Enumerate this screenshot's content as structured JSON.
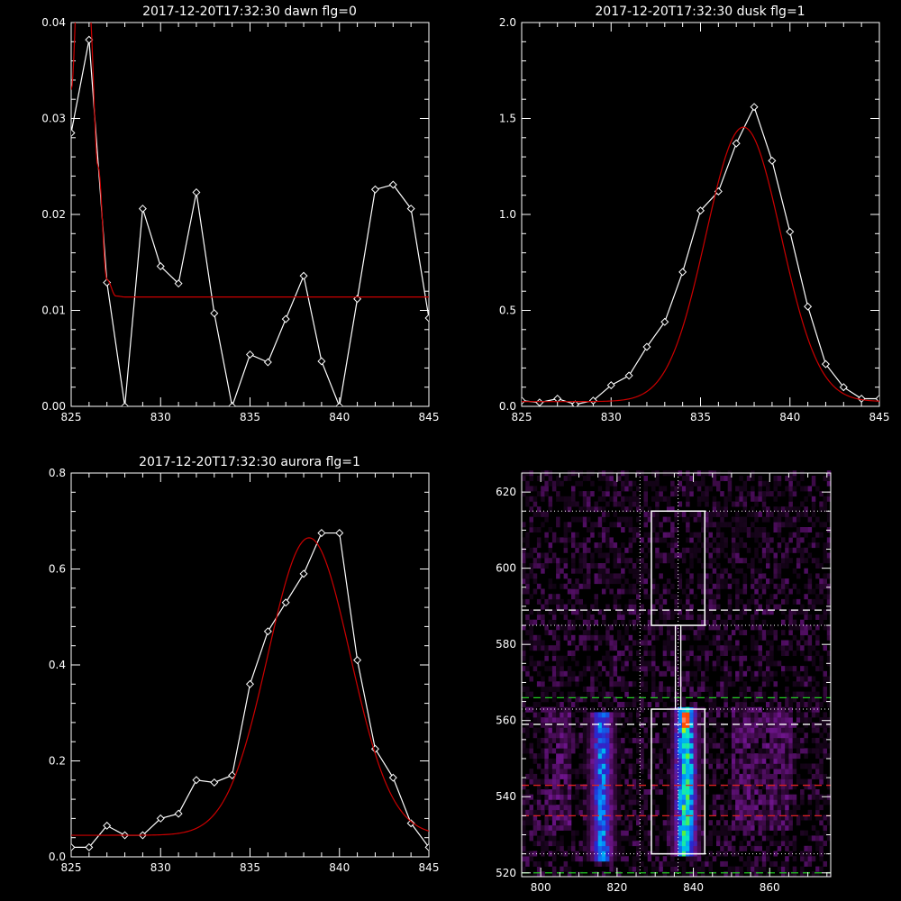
{
  "chart_data": [
    {
      "type": "line",
      "title": "2017-12-20T17:32:30 dawn flg=0",
      "xlim": [
        825,
        845
      ],
      "ylim": [
        0,
        0.04
      ],
      "xticks": [
        825,
        830,
        835,
        840,
        845
      ],
      "xtick_labels": [
        "825",
        "830",
        "835",
        "840",
        "845"
      ],
      "yticks": [
        0,
        0.01,
        0.02,
        0.03,
        0.04
      ],
      "ytick_labels": [
        "0.00",
        "0.01",
        "0.02",
        "0.03",
        "0.04"
      ],
      "series": [
        {
          "color": "#ffffff",
          "marker": "diamond",
          "x": [
            825,
            826,
            827,
            828,
            829,
            830,
            831,
            832,
            833,
            834,
            835,
            836,
            837,
            838,
            839,
            840,
            841,
            842,
            843,
            844,
            845
          ],
          "y": [
            0.0285,
            0.0382,
            0.0129,
            0.0,
            0.0206,
            0.0146,
            0.0128,
            0.0223,
            0.0097,
            0.0,
            0.0054,
            0.0046,
            0.0091,
            0.0136,
            0.0047,
            0.0,
            0.0112,
            0.0226,
            0.0231,
            0.0206,
            0.0092
          ]
        },
        {
          "color": "#cc0000",
          "x": [
            825,
            825.5,
            826,
            826.5,
            827,
            827.5,
            828,
            830,
            835,
            840,
            845
          ],
          "y": [
            0.033,
            0.05,
            0.042,
            0.025,
            0.0132,
            0.0115,
            0.0114,
            0.0114,
            0.0114,
            0.0114,
            0.0114
          ]
        }
      ]
    },
    {
      "type": "line",
      "title": "2017-12-20T17:32:30 dusk flg=1",
      "xlim": [
        825,
        845
      ],
      "ylim": [
        0,
        2.0
      ],
      "xticks": [
        825,
        830,
        835,
        840,
        845
      ],
      "xtick_labels": [
        "825",
        "830",
        "835",
        "840",
        "845"
      ],
      "yticks": [
        0,
        0.5,
        1.0,
        1.5,
        2.0
      ],
      "ytick_labels": [
        "0.0",
        "0.5",
        "1.0",
        "1.5",
        "2.0"
      ],
      "series": [
        {
          "color": "#ffffff",
          "marker": "diamond",
          "x": [
            825,
            826,
            827,
            828,
            829,
            830,
            831,
            832,
            833,
            834,
            835,
            836,
            837,
            838,
            839,
            840,
            841,
            842,
            843,
            844,
            845
          ],
          "y": [
            0.03,
            0.02,
            0.04,
            0.01,
            0.03,
            0.11,
            0.16,
            0.31,
            0.44,
            0.7,
            1.02,
            1.12,
            1.37,
            1.56,
            1.28,
            0.91,
            0.52,
            0.22,
            0.1,
            0.04,
            0.04
          ]
        },
        {
          "color": "#cc0000",
          "gaussian": {
            "amplitude": 1.43,
            "center": 837.4,
            "sigma": 2.1,
            "offset": 0.025
          }
        }
      ]
    },
    {
      "type": "line",
      "title": "2017-12-20T17:32:30 aurora flg=1",
      "xlim": [
        825,
        845
      ],
      "ylim": [
        0,
        0.8
      ],
      "xticks": [
        825,
        830,
        835,
        840,
        845
      ],
      "xtick_labels": [
        "825",
        "830",
        "835",
        "840",
        "845"
      ],
      "yticks": [
        0,
        0.2,
        0.4,
        0.6,
        0.8
      ],
      "ytick_labels": [
        "0.0",
        "0.2",
        "0.4",
        "0.6",
        "0.8"
      ],
      "series": [
        {
          "color": "#ffffff",
          "marker": "diamond",
          "x": [
            825,
            826,
            827,
            828,
            829,
            830,
            831,
            832,
            833,
            834,
            835,
            836,
            837,
            838,
            839,
            840,
            841,
            842,
            843,
            844,
            845
          ],
          "y": [
            0.02,
            0.02,
            0.065,
            0.045,
            0.045,
            0.08,
            0.09,
            0.16,
            0.155,
            0.17,
            0.36,
            0.47,
            0.53,
            0.59,
            0.675,
            0.675,
            0.41,
            0.225,
            0.165,
            0.07,
            0.02
          ]
        },
        {
          "color": "#cc0000",
          "gaussian": {
            "amplitude": 0.62,
            "center": 838.3,
            "sigma": 2.3,
            "offset": 0.045
          }
        }
      ]
    },
    {
      "type": "heatmap",
      "title": "",
      "xlim": [
        795,
        876
      ],
      "ylim": [
        519,
        625
      ],
      "xticks": [
        800,
        820,
        840,
        860
      ],
      "xtick_labels": [
        "800",
        "820",
        "840",
        "860"
      ],
      "yticks": [
        520,
        540,
        560,
        580,
        600,
        620
      ],
      "ytick_labels": [
        "520",
        "540",
        "560",
        "580",
        "600",
        "620"
      ],
      "bright_columns": [
        {
          "x": 816,
          "y_range": [
            523,
            562
          ],
          "peak": 0.75
        },
        {
          "x": 838,
          "y_range": [
            524,
            563
          ],
          "peak": 1.0
        }
      ],
      "hot_spot": {
        "x": 838,
        "y": 560
      },
      "white_boxes": [
        {
          "x_range": [
            829,
            843
          ],
          "y_range": [
            525,
            563
          ]
        },
        {
          "x_range": [
            829,
            843
          ],
          "y_range": [
            585,
            615
          ]
        }
      ],
      "white_dashed_y": [
        589,
        559
      ],
      "red_dashed_y": [
        543,
        535
      ],
      "green_dashed_y": [
        566,
        520
      ],
      "white_dotted_y": [
        615,
        585,
        563,
        525
      ],
      "white_dotted_x": [
        826,
        836
      ],
      "colors": {
        "white": "#ffffff",
        "red": "#dd2222",
        "green": "#22cc22",
        "frame": "#ffffff"
      }
    }
  ]
}
